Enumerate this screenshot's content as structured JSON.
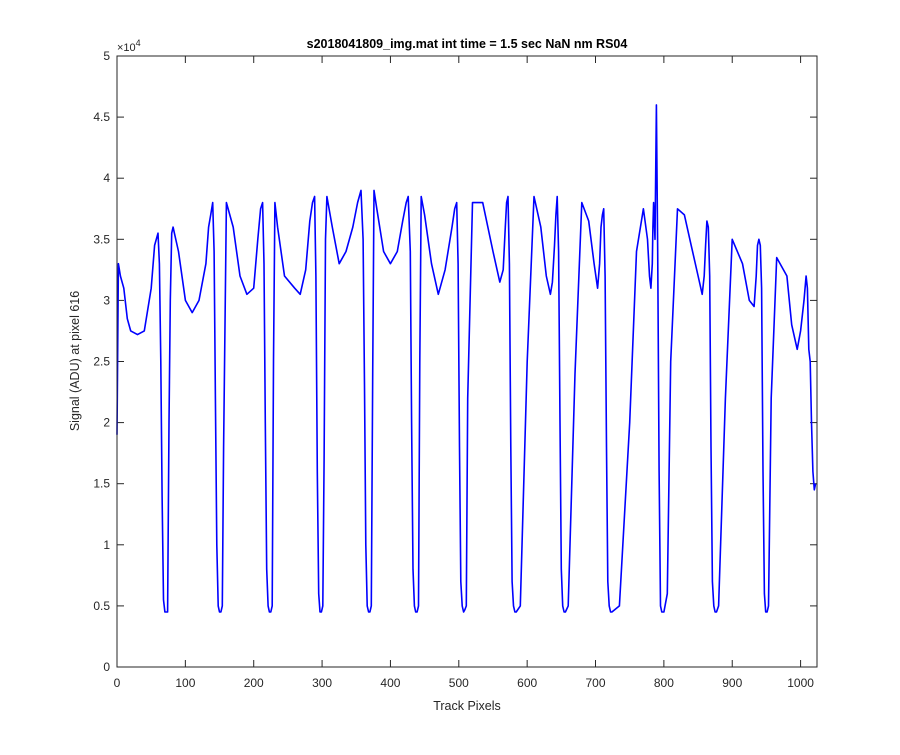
{
  "chart_data": {
    "type": "line",
    "title": "s2018041809_img.mat int time = 1.5 sec  NaN nm RS04",
    "xlabel": "Track Pixels",
    "ylabel": "Signal (ADU) at pixel 616",
    "xlim": [
      0,
      1024
    ],
    "ylim": [
      0,
      5
    ],
    "y_scale_label": "×10",
    "y_scale_exponent": "4",
    "x_ticks": [
      0,
      100,
      200,
      300,
      400,
      500,
      600,
      700,
      800,
      900,
      1000
    ],
    "x_tick_labels": [
      "0",
      "100",
      "200",
      "300",
      "400",
      "500",
      "600",
      "700",
      "800",
      "900",
      "1000"
    ],
    "y_ticks": [
      0,
      0.5,
      1,
      1.5,
      2,
      2.5,
      3,
      3.5,
      4,
      4.5,
      5
    ],
    "y_tick_labels": [
      "0",
      "0.5",
      "1",
      "1.5",
      "2",
      "2.5",
      "3",
      "3.5",
      "4",
      "4.5",
      "5"
    ],
    "series": [
      {
        "name": "signal",
        "color": "#0000ff",
        "x": [
          0,
          2,
          5,
          10,
          15,
          20,
          30,
          40,
          50,
          55,
          60,
          62,
          64,
          66,
          68,
          70,
          72,
          74,
          76,
          78,
          80,
          82,
          84,
          90,
          100,
          110,
          120,
          130,
          134,
          137,
          140,
          142,
          144,
          146,
          148,
          150,
          152,
          154,
          156,
          160,
          170,
          180,
          190,
          200,
          206,
          210,
          213,
          215,
          217,
          219,
          221,
          223,
          225,
          227,
          229,
          231,
          235,
          245,
          260,
          268,
          276,
          282,
          286,
          289,
          291,
          293,
          295,
          297,
          299,
          301,
          303,
          305,
          307,
          315,
          325,
          335,
          345,
          352,
          357,
          360,
          362,
          364,
          366,
          368,
          370,
          372,
          374,
          376,
          380,
          390,
          400,
          410,
          418,
          423,
          426,
          429,
          431,
          433,
          435,
          437,
          439,
          441,
          443,
          445,
          450,
          460,
          470,
          480,
          490,
          494,
          497,
          499,
          501,
          503,
          505,
          507,
          509,
          511,
          513,
          520,
          535,
          550,
          560,
          565,
          568,
          570,
          572,
          574,
          576,
          578,
          580,
          582,
          584,
          590,
          600,
          610,
          620,
          628,
          634,
          637,
          640,
          642,
          644,
          646,
          648,
          650,
          652,
          654,
          656,
          660,
          670,
          680,
          690,
          698,
          703,
          706,
          708,
          710,
          712,
          714,
          716,
          718,
          720,
          722,
          724,
          735,
          750,
          760,
          770,
          776,
          779,
          781,
          783,
          784,
          785,
          787,
          789,
          791,
          793,
          795,
          797,
          800,
          805,
          810,
          820,
          830,
          840,
          850,
          856,
          859,
          861,
          863,
          865,
          867,
          869,
          871,
          873,
          875,
          877,
          880,
          890,
          900,
          915,
          925,
          932,
          935,
          937,
          939,
          941,
          943,
          945,
          947,
          949,
          951,
          953,
          957,
          965,
          980,
          987,
          995,
          1000,
          1005,
          1008,
          1010,
          1012,
          1014,
          1016,
          1018,
          1020,
          1022
        ],
        "y": [
          1.9,
          3.3,
          3.2,
          3.1,
          2.85,
          2.75,
          2.72,
          2.75,
          3.1,
          3.45,
          3.55,
          3.3,
          2.5,
          1.4,
          0.55,
          0.45,
          0.45,
          0.45,
          2.0,
          3.0,
          3.55,
          3.6,
          3.55,
          3.4,
          3.0,
          2.9,
          3.0,
          3.3,
          3.6,
          3.7,
          3.8,
          3.4,
          2.2,
          1.0,
          0.5,
          0.45,
          0.45,
          0.5,
          1.8,
          3.8,
          3.6,
          3.2,
          3.05,
          3.1,
          3.5,
          3.75,
          3.8,
          3.3,
          2.0,
          0.8,
          0.5,
          0.45,
          0.45,
          0.5,
          2.5,
          3.8,
          3.6,
          3.2,
          3.1,
          3.05,
          3.25,
          3.65,
          3.8,
          3.85,
          3.2,
          1.6,
          0.6,
          0.45,
          0.45,
          0.5,
          1.7,
          3.5,
          3.85,
          3.6,
          3.3,
          3.4,
          3.6,
          3.8,
          3.9,
          3.5,
          2.3,
          1.0,
          0.5,
          0.45,
          0.45,
          0.5,
          2.4,
          3.9,
          3.75,
          3.4,
          3.3,
          3.4,
          3.65,
          3.8,
          3.85,
          3.4,
          2.0,
          0.8,
          0.5,
          0.45,
          0.45,
          0.5,
          2.5,
          3.85,
          3.7,
          3.3,
          3.05,
          3.25,
          3.6,
          3.75,
          3.8,
          3.3,
          1.8,
          0.7,
          0.5,
          0.45,
          0.47,
          0.5,
          2.2,
          3.8,
          3.8,
          3.4,
          3.15,
          3.25,
          3.6,
          3.8,
          3.85,
          3.3,
          1.8,
          0.7,
          0.5,
          0.45,
          0.45,
          0.5,
          2.5,
          3.85,
          3.6,
          3.2,
          3.05,
          3.15,
          3.45,
          3.7,
          3.85,
          3.4,
          2.0,
          0.8,
          0.5,
          0.45,
          0.45,
          0.5,
          2.4,
          3.8,
          3.65,
          3.3,
          3.1,
          3.3,
          3.6,
          3.7,
          3.75,
          3.2,
          1.8,
          0.7,
          0.5,
          0.45,
          0.45,
          0.5,
          2.0,
          3.4,
          3.75,
          3.5,
          3.2,
          3.1,
          3.3,
          3.6,
          3.8,
          3.5,
          4.6,
          3.4,
          1.6,
          0.5,
          0.45,
          0.45,
          0.6,
          2.5,
          3.75,
          3.7,
          3.45,
          3.2,
          3.05,
          3.2,
          3.45,
          3.65,
          3.6,
          3.2,
          1.8,
          0.7,
          0.5,
          0.45,
          0.45,
          0.5,
          2.2,
          3.5,
          3.3,
          3.0,
          2.95,
          3.2,
          3.45,
          3.5,
          3.45,
          3.1,
          1.6,
          0.6,
          0.45,
          0.45,
          0.5,
          2.2,
          3.35,
          3.2,
          2.8,
          2.6,
          2.75,
          3.0,
          3.2,
          3.1,
          2.6,
          2.5,
          2.0,
          1.6,
          1.45,
          1.5
        ]
      }
    ]
  }
}
